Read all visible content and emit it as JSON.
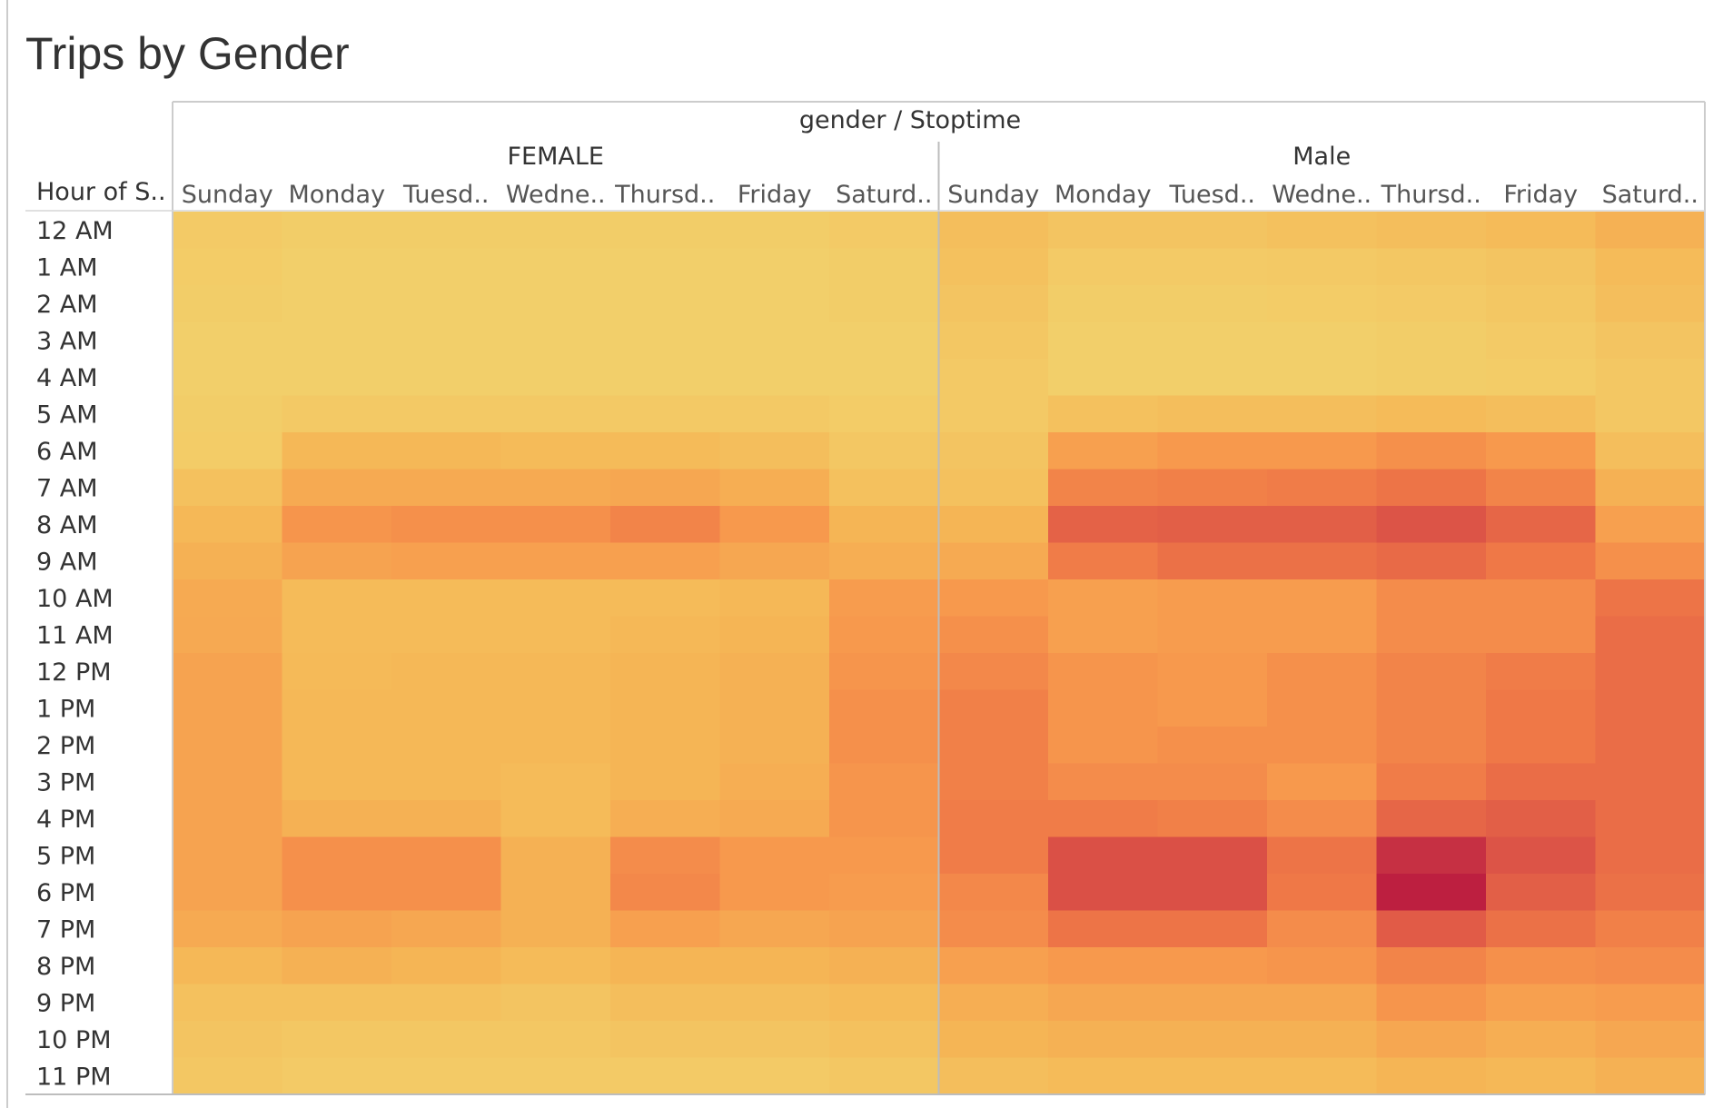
{
  "chart_data": {
    "type": "heatmap",
    "title": "Trips by Gender",
    "header_title": "gender / Stoptime",
    "row_axis_label": "Hour of S..",
    "groups": [
      "FEMALE",
      "Male"
    ],
    "day_labels": [
      "Sunday",
      "Monday",
      "Tuesd..",
      "Wedne..",
      "Thursd..",
      "Friday",
      "Saturd.."
    ],
    "hours": [
      "12 AM",
      "1 AM",
      "2 AM",
      "3 AM",
      "4 AM",
      "5 AM",
      "6 AM",
      "7 AM",
      "8 AM",
      "9 AM",
      "10 AM",
      "11 AM",
      "12 PM",
      "1 PM",
      "2 PM",
      "3 PM",
      "4 PM",
      "5 PM",
      "6 PM",
      "7 PM",
      "8 PM",
      "9 PM",
      "10 PM",
      "11 PM"
    ],
    "value_scale": "relative trip intensity 0-100 (no color legend shown)",
    "color_scale": [
      "#f2d06b",
      "#f5b756",
      "#f79a4d",
      "#ef7847",
      "#e05a47",
      "#cc3a45",
      "#b8173e"
    ],
    "female": [
      [
        4,
        2,
        2,
        2,
        2,
        2,
        4
      ],
      [
        3,
        1,
        1,
        1,
        1,
        1,
        2
      ],
      [
        2,
        1,
        1,
        1,
        1,
        1,
        2
      ],
      [
        1,
        1,
        1,
        1,
        1,
        1,
        1
      ],
      [
        1,
        1,
        1,
        1,
        1,
        1,
        1
      ],
      [
        2,
        5,
        5,
        5,
        5,
        5,
        3
      ],
      [
        3,
        16,
        16,
        14,
        14,
        12,
        6
      ],
      [
        10,
        24,
        24,
        24,
        26,
        22,
        10
      ],
      [
        16,
        36,
        38,
        38,
        44,
        34,
        18
      ],
      [
        20,
        28,
        30,
        30,
        30,
        26,
        22
      ],
      [
        24,
        14,
        14,
        14,
        14,
        16,
        32
      ],
      [
        25,
        14,
        14,
        14,
        16,
        18,
        34
      ],
      [
        28,
        15,
        16,
        16,
        18,
        20,
        36
      ],
      [
        28,
        16,
        16,
        16,
        18,
        20,
        38
      ],
      [
        28,
        16,
        16,
        16,
        18,
        20,
        38
      ],
      [
        28,
        16,
        16,
        14,
        18,
        22,
        36
      ],
      [
        28,
        20,
        20,
        14,
        22,
        24,
        36
      ],
      [
        28,
        38,
        38,
        20,
        40,
        34,
        34
      ],
      [
        28,
        38,
        38,
        20,
        42,
        34,
        32
      ],
      [
        24,
        28,
        26,
        20,
        30,
        26,
        28
      ],
      [
        16,
        20,
        18,
        14,
        18,
        18,
        20
      ],
      [
        10,
        10,
        10,
        8,
        12,
        12,
        14
      ],
      [
        8,
        6,
        6,
        6,
        8,
        8,
        10
      ],
      [
        6,
        4,
        4,
        4,
        4,
        4,
        6
      ]
    ],
    "male": [
      [
        12,
        8,
        8,
        10,
        12,
        14,
        20
      ],
      [
        10,
        4,
        4,
        5,
        6,
        8,
        14
      ],
      [
        8,
        2,
        2,
        3,
        4,
        6,
        12
      ],
      [
        6,
        1,
        1,
        1,
        2,
        4,
        8
      ],
      [
        5,
        1,
        1,
        1,
        2,
        3,
        6
      ],
      [
        5,
        10,
        12,
        12,
        14,
        12,
        6
      ],
      [
        8,
        30,
        34,
        34,
        38,
        34,
        12
      ],
      [
        10,
        44,
        46,
        48,
        52,
        44,
        20
      ],
      [
        18,
        62,
        64,
        64,
        70,
        60,
        30
      ],
      [
        24,
        48,
        54,
        54,
        58,
        50,
        38
      ],
      [
        34,
        30,
        32,
        32,
        40,
        40,
        52
      ],
      [
        38,
        30,
        32,
        32,
        40,
        40,
        56
      ],
      [
        42,
        36,
        34,
        38,
        44,
        48,
        56
      ],
      [
        46,
        36,
        34,
        38,
        44,
        50,
        56
      ],
      [
        46,
        36,
        38,
        38,
        44,
        50,
        56
      ],
      [
        46,
        40,
        40,
        34,
        48,
        56,
        56
      ],
      [
        48,
        48,
        46,
        40,
        60,
        64,
        56
      ],
      [
        48,
        72,
        72,
        52,
        88,
        70,
        56
      ],
      [
        42,
        72,
        72,
        50,
        96,
        64,
        54
      ],
      [
        40,
        52,
        52,
        40,
        66,
        54,
        46
      ],
      [
        30,
        34,
        34,
        36,
        44,
        38,
        40
      ],
      [
        22,
        26,
        26,
        26,
        36,
        30,
        32
      ],
      [
        18,
        20,
        20,
        20,
        26,
        22,
        26
      ],
      [
        12,
        14,
        14,
        14,
        18,
        16,
        20
      ]
    ]
  }
}
